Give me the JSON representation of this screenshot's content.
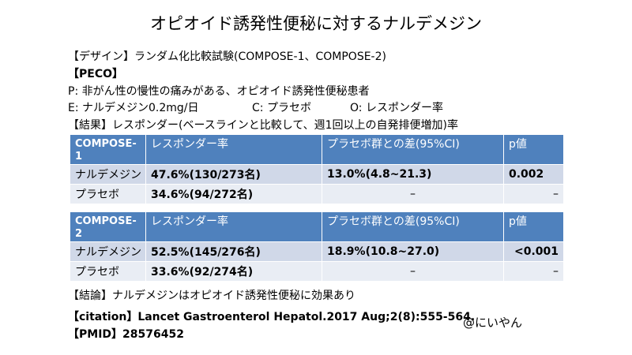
{
  "title": "オピオイド誘発性便秘に対するナルデメジン",
  "design": "【デザイン】ランダム化比較試験(COMPOSE-1、COMPOSE-2)",
  "peco_header": "【PECO】",
  "peco_p": "P: 非がん性の慢性の痛みがある、オピオイド誘発性便秘患者",
  "peco_e": "E: ナルデメジン0.2mg/日",
  "peco_c": "C: プラセボ",
  "peco_o": "O: レスポンダー率",
  "results_header": "【結果】レスポンダー(ベースラインと比較して、週1回以上の自発排便増加)率",
  "tables": [
    {
      "header": [
        "COMPOSE-1",
        "レスポンダー率",
        "プラセボ群との差(95%CI)",
        "p値"
      ],
      "rows": [
        [
          "ナルデメジン",
          "47.6%(130/273名)",
          "13.0%(4.8~21.3)",
          "0.002"
        ],
        [
          "プラセボ",
          "34.6%(94/272名)",
          "–",
          "–"
        ]
      ]
    },
    {
      "header": [
        "COMPOSE-2",
        "レスポンダー率",
        "プラセボ群との差(95%CI)",
        "p値"
      ],
      "rows": [
        [
          "ナルデメジン",
          "52.5%(145/276名)",
          "18.9%(10.8~27.0)",
          "<0.001"
        ],
        [
          "プラセボ",
          "33.6%(92/274名)",
          "–",
          "–"
        ]
      ]
    }
  ],
  "conclusion": "【結論】ナルデメジンはオピオイド誘発性便秘に効果あり",
  "citation": "【citation】Lancet Gastroenterol Hepatol.2017 Aug;2(8):555-564.",
  "pmid": "【PMID】28576452",
  "handle": "@にいやん",
  "colors": {
    "header_blue": "#4f81bd",
    "row_dark": "#d0d8e8",
    "row_light": "#e9edf4"
  }
}
